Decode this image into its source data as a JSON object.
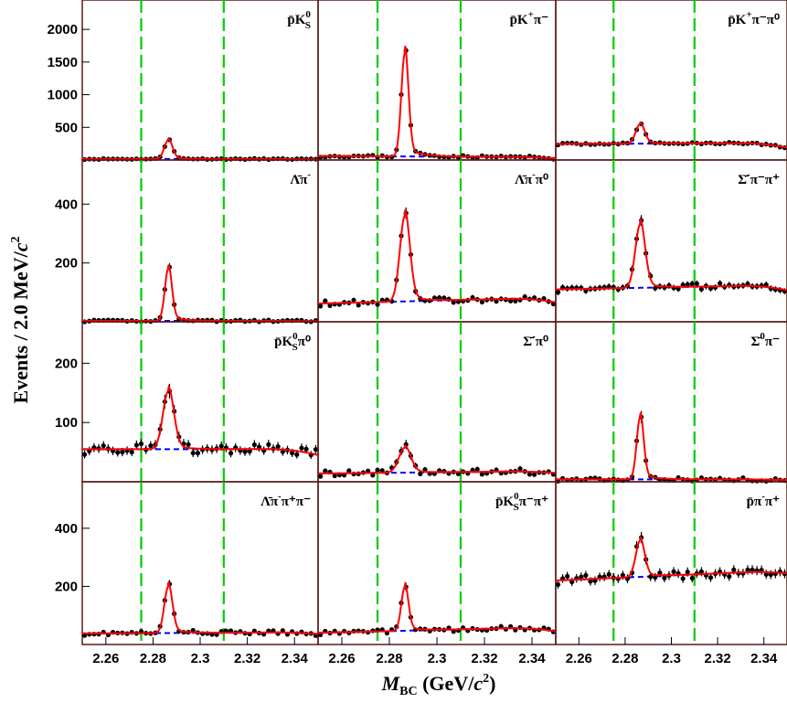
{
  "chart_data": {
    "type": "scatter",
    "ylabel_main": "Events / 2.0 MeV/",
    "ylabel_c": "c",
    "ylabel_sup": "2",
    "xlabel_main": "M",
    "xlabel_sub": "BC",
    "xlabel_rest": " (GeV/",
    "xlabel_c": "c",
    "xlabel_sup": "2",
    "xlabel_end": ")",
    "xlim": [
      2.25,
      2.35
    ],
    "x_ticks": [
      2.26,
      2.28,
      2.3,
      2.32,
      2.34
    ],
    "x_tick_labels": [
      "2.26",
      "2.28",
      "2.3",
      "2.32",
      "2.34"
    ],
    "signal_window": [
      2.275,
      2.31
    ],
    "colors": {
      "data": "#000000",
      "fit": "#ff0000",
      "background": "#0000ff",
      "window": "#00cc00",
      "frame": "#5a1a1a"
    },
    "rows": [
      {
        "ylim": [
          0,
          2450
        ],
        "y_ticks": [
          500,
          1000,
          1500,
          2000
        ],
        "y_tick_labels": [
          "500",
          "1000",
          "1500",
          "2000"
        ]
      },
      {
        "ylim": [
          0,
          550
        ],
        "y_ticks": [
          200,
          400
        ],
        "y_tick_labels": [
          "200",
          "400"
        ]
      },
      {
        "ylim": [
          0,
          270
        ],
        "y_ticks": [
          100,
          200
        ],
        "y_tick_labels": [
          "100",
          "200"
        ]
      },
      {
        "ylim": [
          0,
          560
        ],
        "y_ticks": [
          200,
          400
        ],
        "y_tick_labels": [
          "200",
          "400"
        ]
      }
    ],
    "panels": [
      {
        "row": 0,
        "col": 0,
        "label_base": "p̄K",
        "label_sup": "0",
        "label_sub": "S",
        "label_tail": "",
        "peak": 290,
        "width": 0.0017,
        "bkg": [
          15,
          15,
          15
        ],
        "noise": 8,
        "seed": 11
      },
      {
        "row": 0,
        "col": 1,
        "label_base": "p̄K",
        "label_sup": "+",
        "label_sub": "",
        "label_tail": "π⁻",
        "peak": 1580,
        "width": 0.0015,
        "bkg": [
          60,
          45,
          38
        ],
        "noise": 18,
        "seed": 23
      },
      {
        "row": 0,
        "col": 2,
        "label_base": "p̄K",
        "label_sup": "+",
        "label_sub": "",
        "label_tail": "π⁻π⁰",
        "peak": 300,
        "width": 0.0019,
        "bkg": [
          245,
          260,
          140
        ],
        "noise": 14,
        "seed": 37
      },
      {
        "row": 1,
        "col": 0,
        "label_base": "Λ̄π",
        "label_sup": "-",
        "label_sub": "",
        "label_tail": "",
        "peak": 178,
        "width": 0.0015,
        "bkg": [
          3,
          3,
          2
        ],
        "noise": 3,
        "seed": 41
      },
      {
        "row": 1,
        "col": 1,
        "label_base": "Λ̄π",
        "label_sup": "-",
        "label_sub": "",
        "label_tail": "π⁰",
        "peak": 290,
        "width": 0.0021,
        "bkg": [
          62,
          82,
          32
        ],
        "noise": 9,
        "seed": 53
      },
      {
        "row": 1,
        "col": 2,
        "label_base": "Σ̄",
        "label_sup": "-",
        "label_sub": "",
        "label_tail": "π⁻π⁺",
        "peak": 215,
        "width": 0.0021,
        "bkg": [
          110,
          125,
          35
        ],
        "noise": 10,
        "seed": 67
      },
      {
        "row": 2,
        "col": 0,
        "label_base": "p̄K",
        "label_sup": "0",
        "label_sub": "S",
        "label_tail": "π⁰",
        "peak": 98,
        "width": 0.0023,
        "bkg": [
          55,
          55,
          20
        ],
        "noise": 9,
        "seed": 71
      },
      {
        "row": 2,
        "col": 1,
        "label_base": "Σ̄",
        "label_sup": "-",
        "label_sub": "",
        "label_tail": "π⁰",
        "peak": 42,
        "width": 0.0025,
        "bkg": [
          14,
          18,
          6
        ],
        "noise": 5,
        "seed": 83
      },
      {
        "row": 2,
        "col": 2,
        "label_base": "Σ̄",
        "label_sup": "0",
        "label_sub": "",
        "label_tail": "π⁻",
        "peak": 105,
        "width": 0.0015,
        "bkg": [
          4,
          4,
          2
        ],
        "noise": 3,
        "seed": 97
      },
      {
        "row": 3,
        "col": 0,
        "label_base": "Λ̄π",
        "label_sup": "-",
        "label_sub": "",
        "label_tail": "π⁺π⁻",
        "peak": 160,
        "width": 0.0017,
        "bkg": [
          38,
          42,
          12
        ],
        "noise": 7,
        "seed": 101
      },
      {
        "row": 3,
        "col": 1,
        "label_base": "p̄K",
        "label_sup": "0",
        "label_sub": "S",
        "label_tail": "π⁻π⁺",
        "peak": 150,
        "width": 0.0015,
        "bkg": [
          40,
          60,
          30
        ],
        "noise": 7,
        "seed": 113
      },
      {
        "row": 3,
        "col": 2,
        "label_base": "p̄π",
        "label_sup": "-",
        "label_sub": "",
        "label_tail": "π⁺",
        "peak": 125,
        "width": 0.0019,
        "bkg": [
          220,
          255,
          20
        ],
        "noise": 14,
        "seed": 127
      }
    ]
  }
}
